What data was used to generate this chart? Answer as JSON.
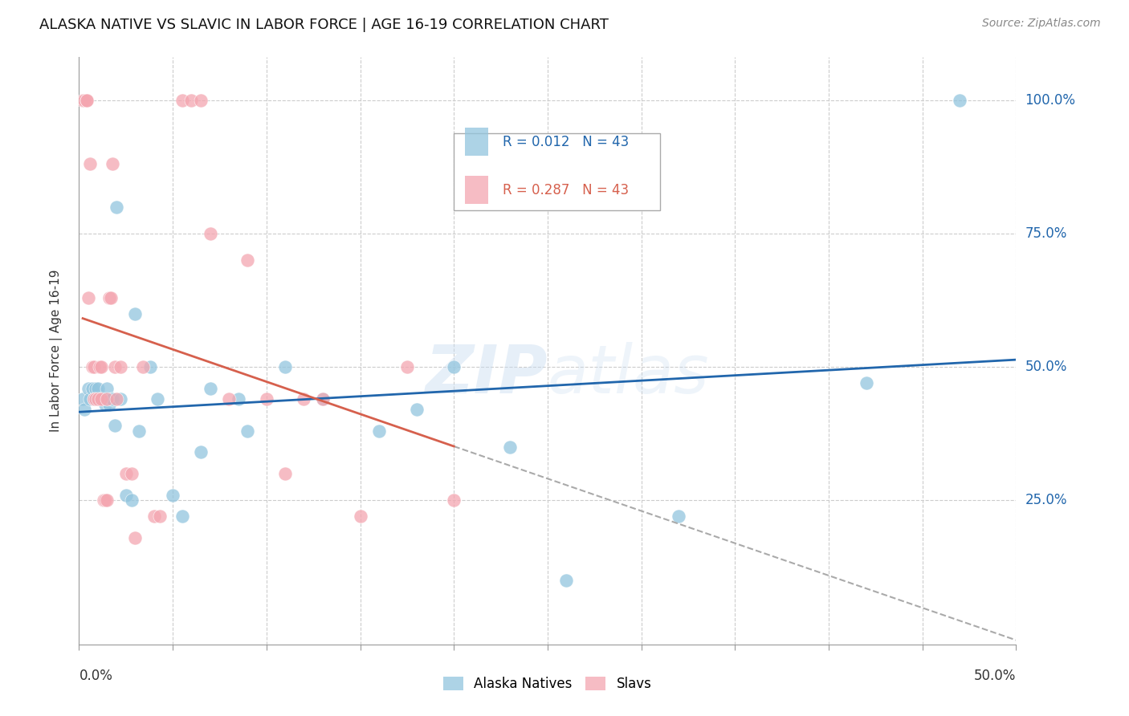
{
  "title": "ALASKA NATIVE VS SLAVIC IN LABOR FORCE | AGE 16-19 CORRELATION CHART",
  "source": "Source: ZipAtlas.com",
  "ylabel": "In Labor Force | Age 16-19",
  "ytick_positions": [
    0.0,
    0.25,
    0.5,
    0.75,
    1.0
  ],
  "ytick_labels": [
    "",
    "25.0%",
    "50.0%",
    "75.0%",
    "100.0%"
  ],
  "xlim": [
    0.0,
    0.5
  ],
  "ylim": [
    -0.02,
    1.08
  ],
  "legend_blue_label": "Alaska Natives",
  "legend_pink_label": "Slavs",
  "R_blue": 0.012,
  "N_blue": 43,
  "R_pink": 0.287,
  "N_pink": 43,
  "blue_color": "#92C5DE",
  "pink_color": "#F4A6B0",
  "trendline_blue_color": "#2166AC",
  "trendline_pink_color": "#D6604D",
  "blue_x": [
    0.002,
    0.003,
    0.005,
    0.006,
    0.007,
    0.008,
    0.009,
    0.01,
    0.01,
    0.011,
    0.012,
    0.013,
    0.014,
    0.015,
    0.015,
    0.016,
    0.017,
    0.018,
    0.019,
    0.02,
    0.022,
    0.025,
    0.028,
    0.03,
    0.032,
    0.038,
    0.042,
    0.05,
    0.055,
    0.065,
    0.07,
    0.085,
    0.09,
    0.11,
    0.13,
    0.16,
    0.18,
    0.2,
    0.23,
    0.26,
    0.32,
    0.42,
    0.47
  ],
  "blue_y": [
    0.44,
    0.42,
    0.46,
    0.44,
    0.46,
    0.44,
    0.46,
    0.44,
    0.46,
    0.44,
    0.44,
    0.44,
    0.43,
    0.44,
    0.46,
    0.43,
    0.44,
    0.44,
    0.39,
    0.8,
    0.44,
    0.26,
    0.25,
    0.6,
    0.38,
    0.5,
    0.44,
    0.26,
    0.22,
    0.34,
    0.46,
    0.44,
    0.38,
    0.5,
    0.44,
    0.38,
    0.42,
    0.5,
    0.35,
    0.1,
    0.22,
    0.47,
    1.0
  ],
  "pink_x": [
    0.002,
    0.003,
    0.004,
    0.004,
    0.005,
    0.006,
    0.007,
    0.008,
    0.008,
    0.009,
    0.01,
    0.011,
    0.012,
    0.012,
    0.013,
    0.014,
    0.015,
    0.015,
    0.016,
    0.017,
    0.018,
    0.019,
    0.02,
    0.022,
    0.025,
    0.028,
    0.03,
    0.034,
    0.04,
    0.043,
    0.055,
    0.06,
    0.065,
    0.07,
    0.08,
    0.09,
    0.1,
    0.11,
    0.12,
    0.13,
    0.15,
    0.175,
    0.2
  ],
  "pink_y": [
    1.0,
    1.0,
    1.0,
    1.0,
    0.63,
    0.88,
    0.5,
    0.5,
    0.44,
    0.44,
    0.44,
    0.5,
    0.44,
    0.5,
    0.25,
    0.25,
    0.25,
    0.44,
    0.63,
    0.63,
    0.88,
    0.5,
    0.44,
    0.5,
    0.3,
    0.3,
    0.18,
    0.5,
    0.22,
    0.22,
    1.0,
    1.0,
    1.0,
    0.75,
    0.44,
    0.7,
    0.44,
    0.3,
    0.44,
    0.44,
    0.22,
    0.5,
    0.25
  ],
  "grid_color": "#CCCCCC",
  "grid_xticks": [
    0.05,
    0.1,
    0.15,
    0.2,
    0.25,
    0.3,
    0.35,
    0.4,
    0.45,
    0.5
  ],
  "grid_yticks": [
    0.25,
    0.5,
    0.75,
    1.0
  ]
}
